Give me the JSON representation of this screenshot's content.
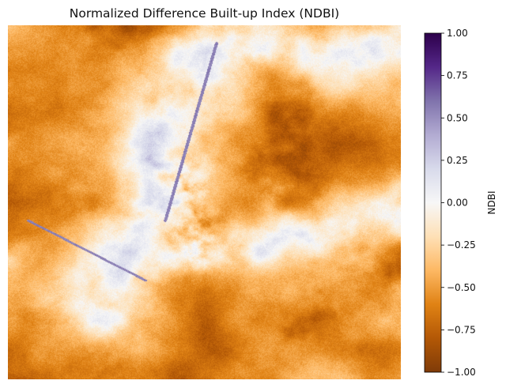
{
  "chart_data": {
    "type": "heatmap",
    "title": "Normalized Difference Built-up Index (NDBI)",
    "colormap": "PuOr",
    "colormap_stops": [
      "#7f3b08",
      "#b35806",
      "#e08214",
      "#fdb863",
      "#fee0b6",
      "#f7f7f7",
      "#d8daeb",
      "#b2abd2",
      "#8073ac",
      "#542788",
      "#2d004b"
    ],
    "value_range": [
      -1.0,
      1.0
    ],
    "colorbar": {
      "label": "NDBI",
      "ticks": [
        "1.00",
        "0.75",
        "0.50",
        "0.25",
        "0.00",
        "−0.25",
        "−0.50",
        "−0.75",
        "−1.00"
      ],
      "tick_values": [
        1.0,
        0.75,
        0.5,
        0.25,
        0.0,
        -0.25,
        -0.5,
        -0.75,
        -1.0
      ]
    },
    "axes_visible": false
  }
}
